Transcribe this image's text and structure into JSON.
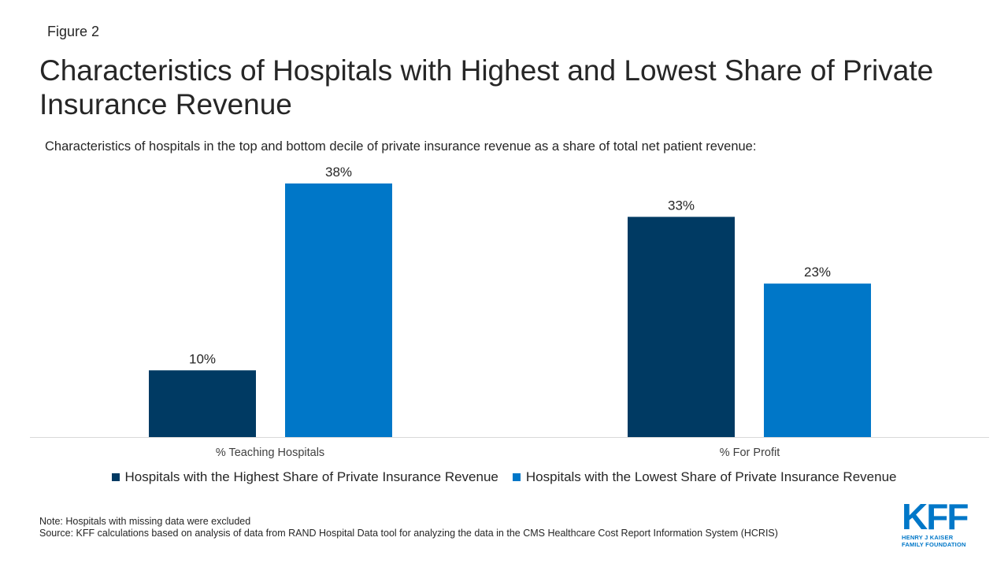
{
  "figure_label": "Figure 2",
  "title": "Characteristics of Hospitals with Highest and Lowest Share of Private Insurance Revenue",
  "subtitle": "Characteristics of hospitals in the top and bottom decile of private insurance revenue as a share of total net patient revenue:",
  "chart_data": {
    "type": "bar",
    "categories": [
      "% Teaching Hospitals",
      "% For Profit"
    ],
    "series": [
      {
        "name": "Hospitals with the Highest Share of Private Insurance Revenue",
        "values": [
          10,
          33
        ],
        "labels": [
          "10%",
          "33%"
        ],
        "color": "#003a63"
      },
      {
        "name": "Hospitals with the Lowest Share of Private Insurance Revenue",
        "values": [
          38,
          23
        ],
        "labels": [
          "38%",
          "23%"
        ],
        "color": "#0077c8"
      }
    ],
    "ylim": [
      0,
      38
    ],
    "grid": false,
    "legend_position": "bottom"
  },
  "notes": {
    "note": "Note: Hospitals with missing data were excluded",
    "source": "Source: KFF calculations based on analysis of data from RAND Hospital Data tool for analyzing the data in the CMS Healthcare Cost Report Information System (HCRIS)"
  },
  "logo": {
    "mark": "KFF",
    "line1": "HENRY J KAISER",
    "line2": "FAMILY FOUNDATION"
  }
}
